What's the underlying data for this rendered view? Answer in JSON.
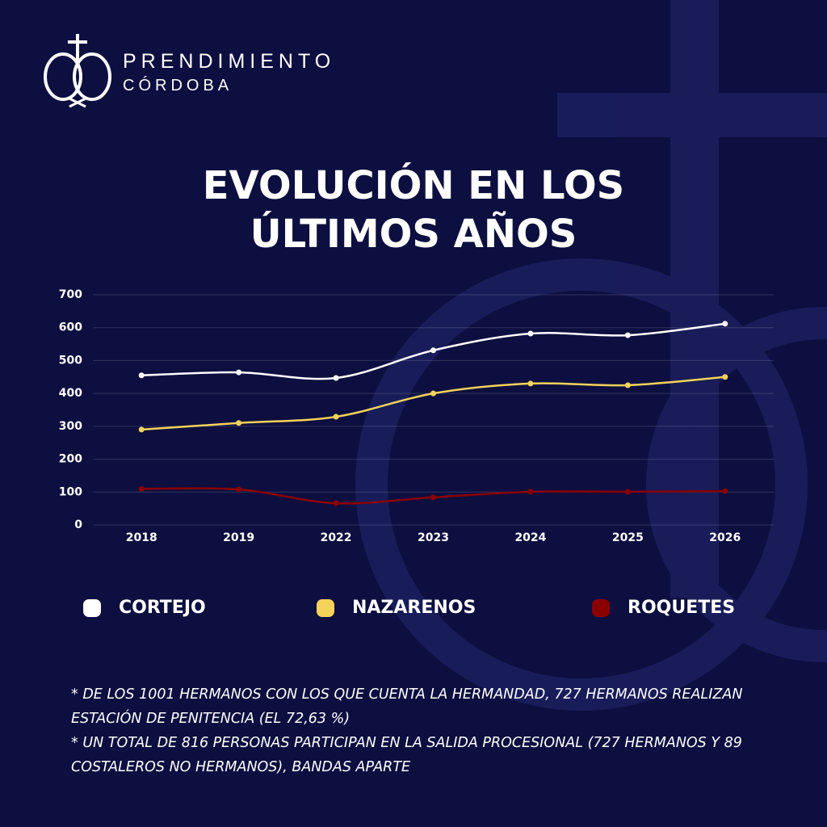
{
  "header": {
    "name": "PRENDIMIENTO",
    "city": "CÓRDOBA"
  },
  "chart_data": {
    "type": "line",
    "title": "EVOLUCIÓN EN LOS ÚLTIMOS AÑOS",
    "categories": [
      "2018",
      "2019",
      "2022",
      "2023",
      "2024",
      "2025",
      "2026"
    ],
    "series": [
      {
        "name": "CORTEJO",
        "color": "#ffffff",
        "values": [
          455,
          464,
          447,
          531,
          582,
          577,
          612
        ]
      },
      {
        "name": "NAZARENOS",
        "color": "#f5d35a",
        "values": [
          290,
          310,
          329,
          400,
          430,
          425,
          450
        ]
      },
      {
        "name": "ROQUETES",
        "color": "#8b0000",
        "values": [
          110,
          108,
          66,
          84,
          101,
          101,
          103
        ]
      }
    ],
    "ylim": [
      0,
      700
    ],
    "yticks": [
      0,
      100,
      200,
      300,
      400,
      500,
      600,
      700
    ],
    "grid": true,
    "smooth": true
  },
  "notes": [
    "*  DE LOS 1001 HERMANOS CON LOS QUE CUENTA LA HERMANDAD, 727 HERMANOS REALIZAN ESTACIÓN DE PENITENCIA (EL 72,63 %)",
    "* UN TOTAL DE 816 PERSONAS PARTICIPAN EN LA SALIDA PROCESIONAL (727 HERMANOS Y 89 COSTALEROS NO HERMANOS), BANDAS APARTE"
  ]
}
